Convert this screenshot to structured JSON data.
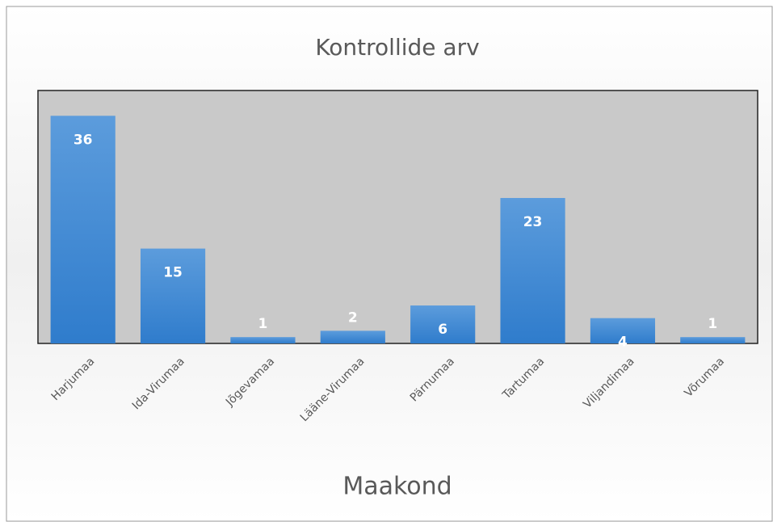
{
  "chart_data": {
    "type": "bar",
    "title": "Kontrollide arv",
    "x_label": "Maakond",
    "categories": [
      "Harjumaa",
      "Ida-Virumaa",
      "Jõgevamaa",
      "Lääne-Virumaa",
      "Pärnumaa",
      "Tartumaa",
      "Viljandimaa",
      "Võrumaa"
    ],
    "values": [
      36,
      15,
      1,
      2,
      6,
      23,
      4,
      1
    ],
    "color": "#3a87d4",
    "ylim": [
      0,
      40
    ]
  }
}
